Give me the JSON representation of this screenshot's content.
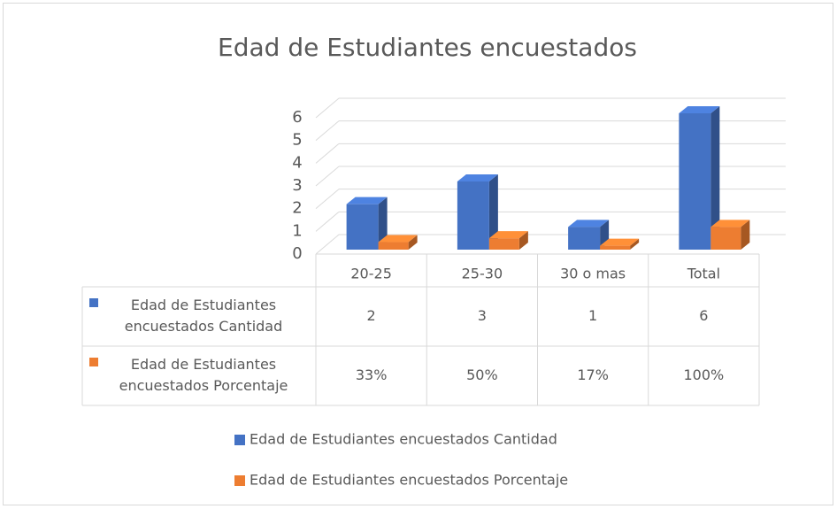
{
  "chart_data": {
    "type": "bar",
    "title": "Edad de Estudiantes encuestados",
    "categories": [
      "20-25",
      "25-30",
      "30 o mas",
      "Total"
    ],
    "series": [
      {
        "name": "Edad de Estudiantes encuestados Cantidad",
        "color": "#4472c4",
        "values": [
          2,
          3,
          1,
          6
        ]
      },
      {
        "name": "Edad de Estudiantes encuestados Porcentaje",
        "color": "#ed7d31",
        "values": [
          0.33,
          0.5,
          0.17,
          1
        ],
        "value_labels": [
          "33%",
          "50%",
          "17%",
          "100%"
        ]
      }
    ],
    "ylim": [
      0,
      6
    ],
    "yticks": [
      0,
      1,
      2,
      3,
      4,
      5,
      6
    ],
    "grid": true,
    "legend": "bottom"
  }
}
